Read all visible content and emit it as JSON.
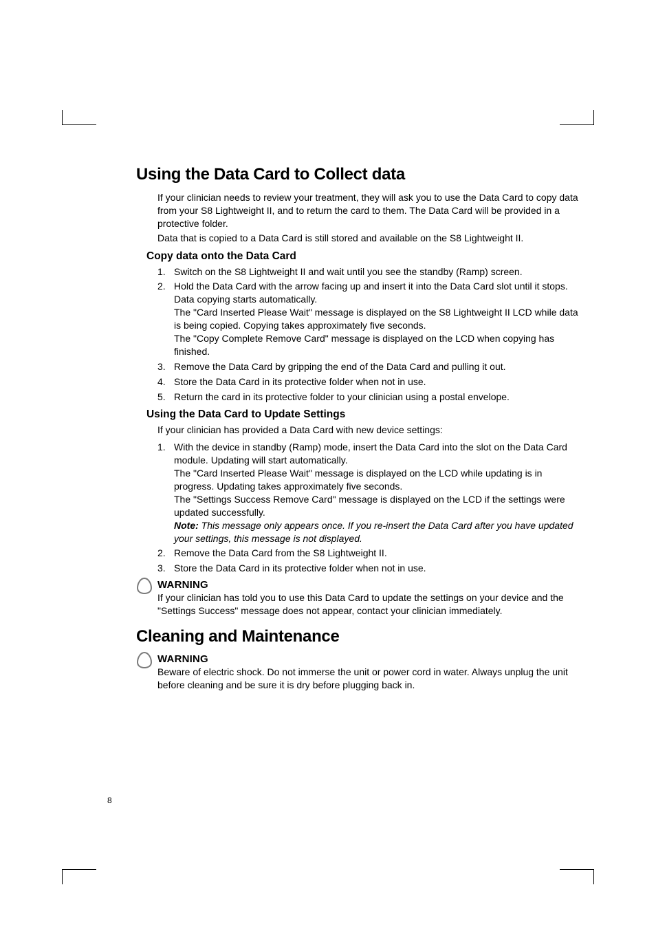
{
  "page_number": "8",
  "section1": {
    "title": "Using the Data Card to Collect data",
    "intro": [
      "If your clinician needs to review your treatment, they will ask you to use the Data Card to copy data from your S8 Lightweight II, and to return the card to them. The Data Card will be provided in a protective folder.",
      "Data that is copied to a Data Card is still stored and available on the S8 Lightweight II."
    ],
    "sub1": {
      "title": "Copy data onto the Data Card",
      "steps": [
        {
          "n": "1.",
          "t": "Switch on the S8 Lightweight II and wait until you see the standby (Ramp) screen."
        },
        {
          "n": "2.",
          "t": "Hold the Data Card with the arrow facing up and insert it into the Data Card slot until it stops. Data copying starts automatically.\nThe \"Card Inserted Please Wait\" message is displayed on the S8 Lightweight II LCD while data is being copied. Copying takes approximately five seconds.\nThe \"Copy Complete Remove Card\" message is displayed on the LCD when copying has finished."
        },
        {
          "n": "3.",
          "t": "Remove the Data Card by gripping the end of the Data Card and pulling it out."
        },
        {
          "n": "4.",
          "t": "Store the Data Card in its protective folder when not in use."
        },
        {
          "n": "5.",
          "t": "Return the card in its protective folder to your clinician using a postal envelope."
        }
      ]
    },
    "sub2": {
      "title": "Using the Data Card to Update Settings",
      "intro": "If your clinician has provided a Data Card with new device settings:",
      "steps": [
        {
          "n": "1.",
          "t": "With the device in standby (Ramp) mode, insert the Data Card into the slot on the Data Card module. Updating will start automatically.\nThe \"Card Inserted Please Wait\" message is displayed on the LCD while updating is in progress. Updating takes approximately five seconds.\nThe \"Settings Success Remove Card\" message is displayed on the LCD if the settings were updated successfully.",
          "note_label": "Note:",
          "note_text": " This message only appears once. If you re-insert the Data Card after you have updated your settings, this message is not displayed."
        },
        {
          "n": "2.",
          "t": "Remove the Data Card from the S8 Lightweight II."
        },
        {
          "n": "3.",
          "t": "Store the Data Card in its protective folder when not in use."
        }
      ]
    },
    "warning1": {
      "title": "WARNING",
      "body": "If your clinician has told you to use this Data Card to update the settings on your device and the \"Settings Success\" message does not appear, contact your clinician immediately."
    }
  },
  "section2": {
    "title": "Cleaning and Maintenance",
    "warning": {
      "title": "WARNING",
      "body": "Beware of electric shock. Do not immerse the unit or power cord in water. Always unplug the unit before cleaning and be sure it is dry before plugging back in."
    }
  },
  "icon_colors": {
    "stroke": "#7a7a7a"
  }
}
